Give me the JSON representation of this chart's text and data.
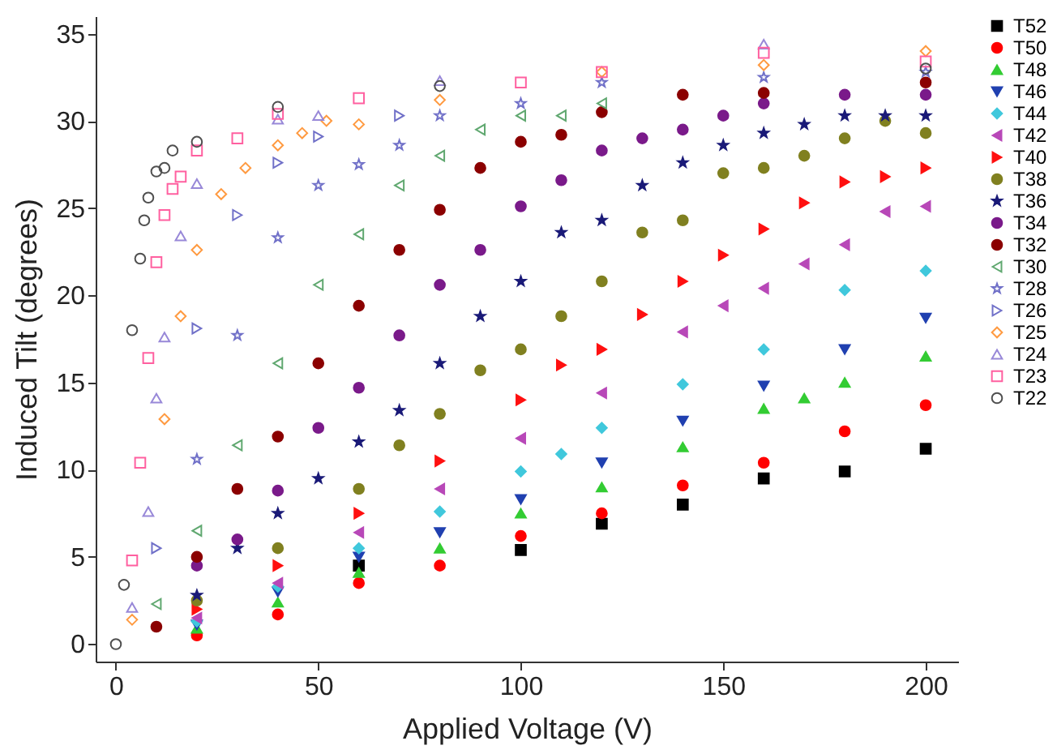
{
  "chart_data": {
    "type": "scatter",
    "xlabel": "Applied Voltage (V)",
    "ylabel": "Induced Tilt (degrees)",
    "xlim": [
      -5,
      208
    ],
    "xticks": [
      0,
      50,
      100,
      150,
      200
    ],
    "ylim": [
      -1,
      36
    ],
    "yticks": [
      0,
      5,
      10,
      15,
      20,
      25,
      30,
      35
    ],
    "grid": false,
    "legend": "right",
    "series": [
      {
        "name": "T52",
        "color": "#000000",
        "marker": "square",
        "x": [
          60,
          100,
          120,
          140,
          160,
          180,
          200
        ],
        "values": [
          4.5,
          5.4,
          6.9,
          8.0,
          9.5,
          9.9,
          11.2
        ]
      },
      {
        "name": "T50",
        "color": "#ff0000",
        "marker": "circle",
        "x": [
          20,
          40,
          60,
          80,
          100,
          120,
          140,
          160,
          180,
          200
        ],
        "values": [
          0.5,
          1.7,
          3.5,
          4.5,
          6.2,
          7.5,
          9.1,
          10.4,
          12.2,
          13.7
        ]
      },
      {
        "name": "T48",
        "color": "#33cc33",
        "marker": "triangle",
        "x": [
          20,
          40,
          60,
          80,
          100,
          120,
          140,
          160,
          170,
          180,
          200
        ],
        "values": [
          0.9,
          2.4,
          4.1,
          5.5,
          7.5,
          9.0,
          11.3,
          13.5,
          14.1,
          15.0,
          16.5
        ]
      },
      {
        "name": "T46",
        "color": "#2040b0",
        "marker": "triangle-down",
        "x": [
          20,
          40,
          60,
          80,
          100,
          120,
          140,
          160,
          180,
          200
        ],
        "values": [
          1.1,
          3.0,
          5.0,
          6.4,
          8.3,
          10.4,
          12.8,
          14.8,
          16.9,
          18.7
        ]
      },
      {
        "name": "T44",
        "color": "#40c8dc",
        "marker": "diamond",
        "x": [
          20,
          40,
          60,
          80,
          100,
          110,
          120,
          140,
          160,
          180,
          200
        ],
        "values": [
          1.3,
          3.3,
          5.5,
          7.6,
          9.9,
          10.9,
          12.4,
          14.9,
          16.9,
          20.3,
          21.4
        ]
      },
      {
        "name": "T42",
        "color": "#b848b8",
        "marker": "triangle-left",
        "x": [
          20,
          40,
          60,
          80,
          100,
          120,
          140,
          150,
          160,
          170,
          180,
          190,
          200
        ],
        "values": [
          1.5,
          3.5,
          6.4,
          8.9,
          11.8,
          14.4,
          17.9,
          19.4,
          20.4,
          21.8,
          22.9,
          24.8,
          25.1
        ]
      },
      {
        "name": "T40",
        "color": "#ff1010",
        "marker": "triangle-right",
        "x": [
          20,
          40,
          60,
          80,
          100,
          110,
          120,
          130,
          140,
          150,
          160,
          170,
          180,
          190,
          200
        ],
        "values": [
          2.0,
          4.5,
          7.5,
          10.5,
          14.0,
          16.0,
          16.9,
          18.9,
          20.8,
          22.3,
          23.8,
          25.3,
          26.5,
          26.8,
          27.3
        ]
      },
      {
        "name": "T38",
        "color": "#808020",
        "marker": "circle",
        "x": [
          20,
          40,
          60,
          70,
          80,
          90,
          100,
          110,
          120,
          130,
          140,
          150,
          160,
          170,
          180,
          190,
          200
        ],
        "values": [
          2.5,
          5.5,
          8.9,
          11.4,
          13.2,
          15.7,
          16.9,
          18.8,
          20.8,
          23.6,
          24.3,
          27.0,
          27.3,
          28.0,
          29.0,
          30.0,
          29.3
        ]
      },
      {
        "name": "T36",
        "color": "#1a1a78",
        "marker": "star",
        "x": [
          20,
          30,
          40,
          50,
          60,
          70,
          80,
          90,
          100,
          110,
          120,
          130,
          140,
          150,
          160,
          170,
          180,
          190,
          200
        ],
        "values": [
          2.8,
          5.5,
          7.5,
          9.5,
          11.6,
          13.4,
          16.1,
          18.8,
          20.8,
          23.6,
          24.3,
          26.3,
          27.6,
          28.6,
          29.3,
          29.8,
          30.3,
          30.3,
          30.3
        ]
      },
      {
        "name": "T34",
        "color": "#7a1a8a",
        "marker": "circle",
        "x": [
          20,
          30,
          40,
          50,
          60,
          70,
          80,
          90,
          100,
          110,
          120,
          130,
          140,
          150,
          160,
          180,
          200
        ],
        "values": [
          4.5,
          6.0,
          8.8,
          12.4,
          14.7,
          17.7,
          20.6,
          22.6,
          25.1,
          26.6,
          28.3,
          29.0,
          29.5,
          30.3,
          31.0,
          31.5,
          31.5
        ]
      },
      {
        "name": "T32",
        "color": "#8b0000",
        "marker": "circle",
        "x": [
          10,
          20,
          30,
          40,
          50,
          60,
          70,
          80,
          90,
          100,
          110,
          120,
          140,
          160,
          200
        ],
        "values": [
          1.0,
          5.0,
          8.9,
          11.9,
          16.1,
          19.4,
          22.6,
          24.9,
          27.3,
          28.8,
          29.2,
          30.5,
          31.5,
          31.6,
          32.2
        ]
      },
      {
        "name": "T30",
        "color": "#60a870",
        "marker": "triangle-left-open",
        "x": [
          10,
          20,
          30,
          40,
          50,
          60,
          70,
          80,
          90,
          100,
          110,
          120
        ],
        "values": [
          2.3,
          6.5,
          11.4,
          16.1,
          20.6,
          23.5,
          26.3,
          28.0,
          29.5,
          30.3,
          30.3,
          31.0
        ]
      },
      {
        "name": "T28",
        "color": "#7070c8",
        "marker": "star-open",
        "x": [
          20,
          30,
          40,
          50,
          60,
          70,
          80,
          100,
          120,
          160,
          200
        ],
        "values": [
          10.6,
          17.7,
          23.3,
          26.3,
          27.5,
          28.6,
          30.3,
          31.0,
          32.2,
          32.5,
          32.8
        ]
      },
      {
        "name": "T26",
        "color": "#7070c8",
        "marker": "triangle-right-open",
        "x": [
          10,
          20,
          30,
          40,
          50,
          70
        ],
        "values": [
          5.5,
          18.1,
          24.6,
          27.6,
          29.1,
          30.3
        ]
      },
      {
        "name": "T25",
        "color": "#ff9a40",
        "marker": "diamond-open",
        "x": [
          4,
          12,
          16,
          20,
          26,
          32,
          40,
          46,
          52,
          60,
          80,
          120,
          160,
          200
        ],
        "values": [
          1.4,
          12.9,
          18.8,
          22.6,
          25.8,
          27.3,
          28.6,
          29.3,
          30.0,
          29.8,
          31.2,
          32.8,
          33.2,
          34.0
        ]
      },
      {
        "name": "T24",
        "color": "#9888d8",
        "marker": "triangle-open",
        "x": [
          4,
          8,
          10,
          12,
          16,
          20,
          40,
          50,
          80,
          160
        ],
        "values": [
          2.1,
          7.6,
          14.1,
          17.6,
          23.4,
          26.4,
          30.1,
          30.3,
          32.3,
          34.4
        ]
      },
      {
        "name": "T23",
        "color": "#ff60a0",
        "marker": "square-open",
        "x": [
          4,
          6,
          8,
          10,
          12,
          14,
          16,
          20,
          30,
          40,
          60,
          100,
          120,
          160,
          200
        ],
        "values": [
          4.8,
          10.4,
          16.4,
          21.9,
          24.6,
          26.1,
          26.8,
          28.3,
          29.0,
          30.4,
          31.3,
          32.2,
          32.8,
          33.9,
          33.4
        ]
      },
      {
        "name": "T22",
        "color": "#505050",
        "marker": "circle-open",
        "x": [
          0,
          2,
          4,
          6,
          7,
          8,
          10,
          12,
          14,
          20,
          40,
          80,
          200
        ],
        "values": [
          0,
          3.4,
          18.0,
          22.1,
          24.3,
          25.6,
          27.1,
          27.3,
          28.3,
          28.8,
          30.8,
          32.0,
          33.0
        ]
      }
    ]
  }
}
